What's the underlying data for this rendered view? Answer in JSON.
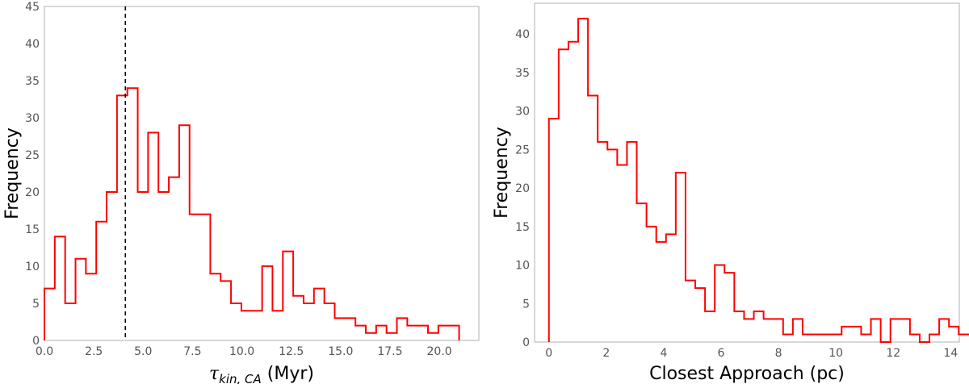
{
  "chart_data": [
    {
      "type": "histogram",
      "xlabel_symbol": "τ",
      "xlabel_sub": "kin, CA",
      "xlabel_unit": " (Myr)",
      "ylabel": "Frequency",
      "xlim": [
        0,
        22
      ],
      "ylim": [
        0,
        45
      ],
      "xticks": [
        "0.0",
        "2.5",
        "5.0",
        "7.5",
        "10.0",
        "12.5",
        "15.0",
        "17.5",
        "20.0"
      ],
      "xtick_values": [
        0,
        2.5,
        5,
        7.5,
        10,
        12.5,
        15,
        17.5,
        20
      ],
      "yticks": [
        "0",
        "5",
        "10",
        "15",
        "20",
        "25",
        "30",
        "35",
        "40",
        "45"
      ],
      "ytick_values": [
        0,
        5,
        10,
        15,
        20,
        25,
        30,
        35,
        40,
        45
      ],
      "grid": false,
      "line_color": "#ff0000",
      "vline": 4.1,
      "vline_color": "#000000",
      "bin_start": 0.0,
      "bin_width": 0.525,
      "counts": [
        7,
        14,
        5,
        11,
        9,
        16,
        20,
        33,
        34,
        20,
        28,
        20,
        22,
        29,
        17,
        17,
        9,
        8,
        5,
        4,
        4,
        10,
        4,
        12,
        6,
        5,
        7,
        5,
        3,
        3,
        2,
        1,
        2,
        1,
        3,
        2,
        2,
        1,
        2,
        2
      ]
    },
    {
      "type": "histogram",
      "xlabel": "Closest Approach (pc)",
      "ylabel": "Frequency",
      "xlim": [
        -0.5,
        14.3
      ],
      "ylim": [
        0,
        44
      ],
      "xticks": [
        "0",
        "2",
        "4",
        "6",
        "8",
        "10",
        "12",
        "14"
      ],
      "xtick_values": [
        0,
        2,
        4,
        6,
        8,
        10,
        12,
        14
      ],
      "yticks": [
        "0",
        "5",
        "10",
        "15",
        "20",
        "25",
        "30",
        "35",
        "40"
      ],
      "ytick_values": [
        0,
        5,
        10,
        15,
        20,
        25,
        30,
        35,
        40
      ],
      "grid": false,
      "line_color": "#ff0000",
      "bin_start": 0.0,
      "bin_width": 0.34,
      "counts": [
        29,
        38,
        39,
        42,
        32,
        26,
        25,
        23,
        26,
        18,
        15,
        13,
        14,
        22,
        8,
        7,
        4,
        10,
        9,
        4,
        3,
        4,
        3,
        3,
        1,
        3,
        1,
        1,
        1,
        1,
        2,
        2,
        1,
        3,
        0,
        3,
        3,
        1,
        0,
        1,
        3,
        2,
        1,
        1
      ]
    }
  ]
}
